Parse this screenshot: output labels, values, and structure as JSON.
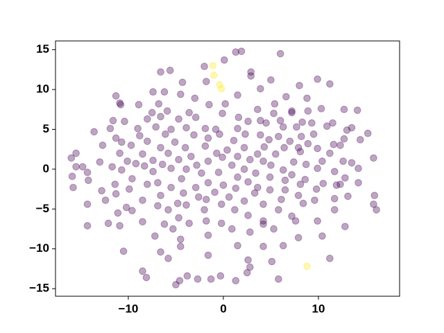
{
  "chart_data": {
    "type": "scatter",
    "xlim": [
      -17.66,
      18.54
    ],
    "ylim": [
      -15.95,
      16.1
    ],
    "xticks": [
      {
        "value": -10,
        "label": "−10"
      },
      0,
      10
    ],
    "yticks": [
      {
        "value": -15,
        "label": "−15"
      },
      {
        "value": -10,
        "label": "−10"
      },
      {
        "value": -5,
        "label": "−5"
      },
      0,
      5,
      10,
      15
    ],
    "opacity": 0.35,
    "series": [
      {
        "color": "#440154",
        "x": [
          1.3,
          1.9,
          6.0,
          0.1,
          -2.0,
          -5.6,
          -6.6,
          2.9,
          2.9,
          -4.3,
          -1.8,
          9.9,
          11.2,
          8.0,
          5.0,
          3.9,
          -7.4,
          -6.2,
          -11.3,
          -4.5,
          -3.0,
          1.5,
          6.6,
          8.8,
          -10.9,
          -10.8,
          -8.9,
          -6.8,
          -1.5,
          0.2,
          3.6,
          5.4,
          7.2,
          8.9,
          10.3,
          12.7,
          14.1,
          -7.5,
          -5.9,
          -3.6,
          -0.1,
          1.6,
          5.3,
          7.2,
          -11.6,
          -10.4,
          -8.0,
          -6.6,
          -4.7,
          -2.9,
          2.6,
          3.9,
          6.0,
          8.3,
          9.3,
          11.5,
          -13.6,
          -11.9,
          -9.0,
          -7.1,
          -5.5,
          -3.9,
          -1.9,
          -0.8,
          1.5,
          4.5,
          6.3,
          7.7,
          9.5,
          10.9,
          13.0,
          13.5,
          15.2,
          -11.3,
          -8.8,
          -6.1,
          -3.1,
          -0.4,
          2.3,
          3.9,
          5.8,
          8.2,
          12.7,
          -12.7,
          -10.7,
          -8.0,
          -5.1,
          -1.6,
          1.1,
          4.8,
          7.0,
          8.9,
          9.9,
          11.6,
          14.4,
          -9.7,
          -6.6,
          -4.0,
          -1.9,
          0.4,
          2.2,
          4.3,
          6.4,
          7.9,
          12.3,
          -15.5,
          -10.9,
          -8.5,
          -5.8,
          -3.4,
          -0.7,
          1.5,
          3.6,
          5.5,
          8.1,
          11.2,
          -16.0,
          -13.0,
          -10.1,
          -7.4,
          -4.7,
          -1.6,
          -0.1,
          2.8,
          4.2,
          7.4,
          10.4,
          12.6,
          13.5,
          15.8,
          -15.5,
          -11.7,
          -9.2,
          -8.3,
          -6.4,
          -2.8,
          0.9,
          5.0,
          8.7,
          -14.8,
          -10.7,
          -5.5,
          -3.9,
          -0.5,
          2.2,
          6.3,
          9.9,
          14.2,
          -14.3,
          -7.4,
          -2.3,
          3.4,
          7.2,
          11.7,
          -15.9,
          -9.6,
          -4.4,
          1.5,
          4.9,
          8.6,
          12.8,
          -14.2,
          -11.4,
          -6.9,
          -1.6,
          0.0,
          2.6,
          6.5,
          10.5,
          14.2,
          -15.8,
          -9.9,
          -8.0,
          -5.5,
          -2.9,
          1.3,
          3.6,
          8.1,
          12.3,
          -12.8,
          -4.2,
          -0.9,
          4.9,
          6.5,
          9.8,
          11.9,
          -11.3,
          -6.6,
          -2.6,
          0.6,
          3.3,
          7.9,
          15.9,
          -12.4,
          -8.5,
          -4.8,
          -1.8,
          2.2,
          6.1,
          9.6,
          11.7,
          13.1,
          -14.3,
          -10.2,
          -6.9,
          -3.9,
          -0.2,
          4.2,
          8.4,
          15.8,
          -9.6,
          -5.8,
          -2.0,
          1.2,
          5.8,
          11.7,
          16.1,
          -11.1,
          2.6,
          7.2,
          -4.7,
          -1.8,
          4.2,
          9.9,
          -14.3,
          -12.1,
          -8.5,
          -6.2,
          -3.6,
          -0.2,
          4.2,
          5.3,
          7.6,
          12.8,
          -10.9,
          -5.3,
          0.9,
          2.8,
          -7.2,
          -1.6,
          7.9,
          10.4,
          -4.5,
          6.3,
          -10.5,
          -6.6,
          -4.5,
          1.5,
          4.2,
          -5.8,
          -1.6,
          2.6,
          11.2,
          5.1,
          -8.5,
          2.8,
          2.5,
          -8.1,
          -3.8,
          -2.7,
          -0.3,
          5.8,
          -4.6,
          -5.0,
          -1.3,
          1.3
        ],
        "values": [
          14.7,
          14.8,
          14.5,
          13.7,
          12.9,
          12.4,
          12.2,
          12.2,
          11.7,
          10.9,
          11.0,
          11.3,
          10.7,
          10.5,
          11.2,
          10.1,
          9.7,
          9.7,
          9.2,
          9.4,
          8.9,
          9.3,
          9.1,
          8.9,
          8.3,
          8.1,
          8.1,
          8.2,
          8.1,
          8.2,
          7.5,
          8.2,
          7.3,
          7.3,
          7.6,
          7.5,
          7.4,
          7.1,
          7.3,
          7.1,
          7.0,
          6.5,
          7.0,
          7.1,
          6.1,
          6.0,
          6.3,
          6.6,
          6.3,
          6.5,
          6.0,
          6.1,
          6.1,
          5.9,
          5.8,
          5.8,
          4.7,
          5.1,
          5.1,
          5.3,
          5.0,
          5.2,
          5.1,
          5.0,
          5.1,
          5.8,
          5.3,
          5.3,
          4.4,
          5.4,
          4.9,
          5.2,
          4.5,
          3.9,
          4.2,
          4.4,
          4.3,
          4.4,
          4.4,
          4.3,
          4.1,
          4.1,
          3.8,
          3.0,
          3.4,
          3.5,
          3.4,
          3.9,
          3.6,
          3.7,
          3.5,
          3.2,
          2.6,
          3.1,
          3.7,
          3.0,
          2.7,
          2.7,
          2.9,
          2.4,
          2.7,
          2.8,
          2.7,
          2.7,
          3.0,
          2.0,
          2.0,
          1.9,
          2.0,
          1.6,
          2.0,
          1.6,
          1.9,
          1.9,
          2.2,
          2.0,
          1.4,
          0.9,
          1.0,
          1.1,
          1.2,
          1.0,
          1.5,
          1.2,
          1.0,
          0.9,
          1.0,
          1.0,
          0.8,
          1.4,
          0.3,
          0.3,
          0.7,
          0.4,
          0.6,
          0.5,
          0.5,
          0.5,
          0.6,
          0.3,
          -0.1,
          0.1,
          0.0,
          -0.4,
          0.0,
          -0.1,
          0.1,
          0.1,
          -0.4,
          -0.3,
          -0.5,
          -0.5,
          -0.7,
          -0.3,
          -0.9,
          -1.2,
          -1.2,
          -1.0,
          -1.0,
          -1.3,
          -1.1,
          -1.4,
          -1.9,
          -1.7,
          -1.7,
          -2.0,
          -1.6,
          -1.4,
          -1.8,
          -1.7,
          -2.3,
          -2.5,
          -1.9,
          -2.3,
          -2.3,
          -2.4,
          -2.3,
          -1.9,
          -1.9,
          -2.7,
          -3.0,
          -2.9,
          -2.6,
          -2.6,
          -2.5,
          -2.0,
          -3.1,
          -3.3,
          -3.5,
          -3.5,
          -3.0,
          -3.3,
          -3.3,
          -3.9,
          -3.9,
          -4.3,
          -3.8,
          -4.0,
          -3.8,
          -3.9,
          -3.7,
          -3.4,
          -4.4,
          -4.8,
          -4.6,
          -4.5,
          -4.4,
          -4.4,
          -4.3,
          -4.4,
          -5.2,
          -5.1,
          -5.1,
          -5.1,
          -5.1,
          -5.1,
          -5.1,
          -5.5,
          -5.8,
          -5.9,
          -6.1,
          -6.5,
          -6.5,
          -6.5,
          -7.1,
          -6.8,
          -6.6,
          -6.9,
          -6.8,
          -6.8,
          -6.9,
          -7.5,
          -6.5,
          -7.2,
          -7.1,
          -7.5,
          -7.5,
          -7.9,
          -8.4,
          -8.3,
          -8.6,
          -8.4,
          -8.8,
          -9.6,
          -10.3,
          -10.4,
          -9.7,
          -9.6,
          -9.7,
          -11.2,
          -10.8,
          -11.4,
          -11.2,
          -11.6,
          -12.8,
          -12.3,
          -13.0,
          -13.6,
          -13.4,
          -13.8,
          -13.4,
          -13.8,
          -14.0,
          -14.5,
          -13.8,
          -14.0
        ]
      },
      {
        "color": "#fde725",
        "x": [
          -1.1,
          -1.0,
          -0.4,
          -0.2,
          8.8
        ],
        "values": [
          13.0,
          11.8,
          10.6,
          10.1,
          -12.2
        ]
      }
    ]
  }
}
